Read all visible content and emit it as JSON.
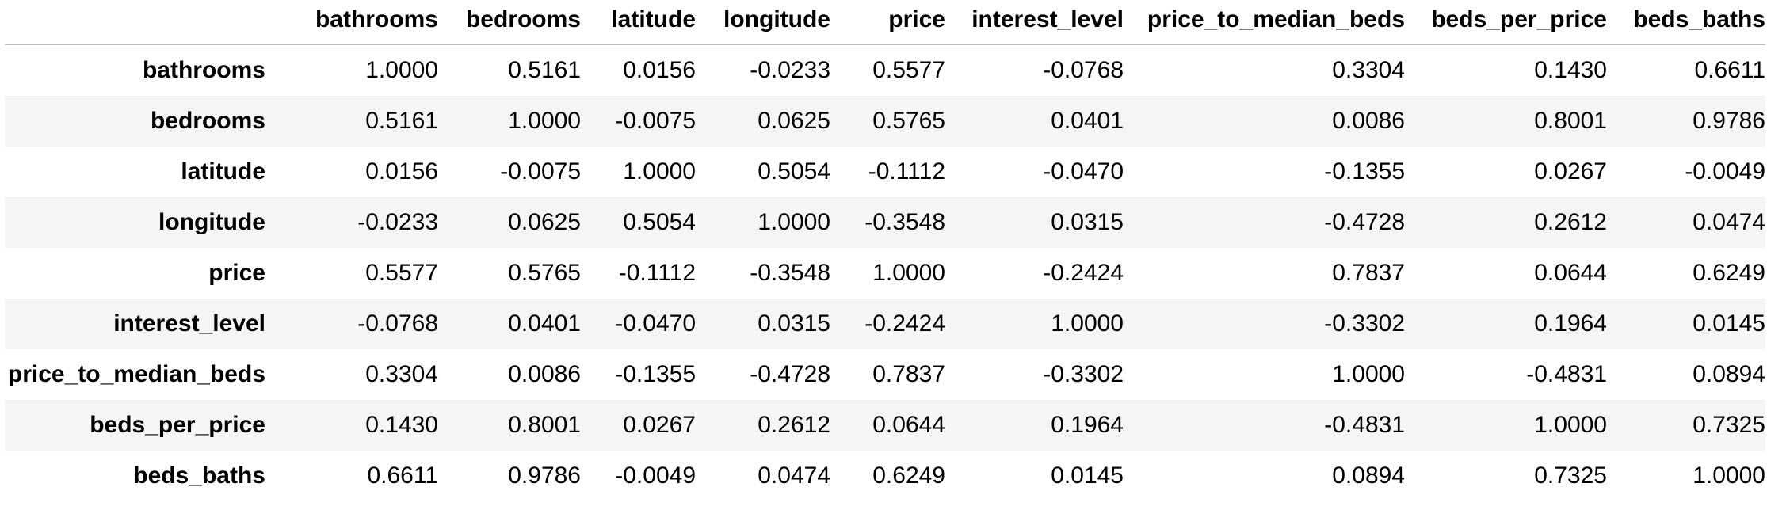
{
  "table": {
    "columns": [
      "bathrooms",
      "bedrooms",
      "latitude",
      "longitude",
      "price",
      "interest_level",
      "price_to_median_beds",
      "beds_per_price",
      "beds_baths"
    ],
    "rows": [
      {
        "label": "bathrooms",
        "values": [
          "1.0000",
          "0.5161",
          "0.0156",
          "-0.0233",
          "0.5577",
          "-0.0768",
          "0.3304",
          "0.1430",
          "0.6611"
        ]
      },
      {
        "label": "bedrooms",
        "values": [
          "0.5161",
          "1.0000",
          "-0.0075",
          "0.0625",
          "0.5765",
          "0.0401",
          "0.0086",
          "0.8001",
          "0.9786"
        ]
      },
      {
        "label": "latitude",
        "values": [
          "0.0156",
          "-0.0075",
          "1.0000",
          "0.5054",
          "-0.1112",
          "-0.0470",
          "-0.1355",
          "0.0267",
          "-0.0049"
        ]
      },
      {
        "label": "longitude",
        "values": [
          "-0.0233",
          "0.0625",
          "0.5054",
          "1.0000",
          "-0.3548",
          "0.0315",
          "-0.4728",
          "0.2612",
          "0.0474"
        ]
      },
      {
        "label": "price",
        "values": [
          "0.5577",
          "0.5765",
          "-0.1112",
          "-0.3548",
          "1.0000",
          "-0.2424",
          "0.7837",
          "0.0644",
          "0.6249"
        ]
      },
      {
        "label": "interest_level",
        "values": [
          "-0.0768",
          "0.0401",
          "-0.0470",
          "0.0315",
          "-0.2424",
          "1.0000",
          "-0.3302",
          "0.1964",
          "0.0145"
        ]
      },
      {
        "label": "price_to_median_beds",
        "values": [
          "0.3304",
          "0.0086",
          "-0.1355",
          "-0.4728",
          "0.7837",
          "-0.3302",
          "1.0000",
          "-0.4831",
          "0.0894"
        ]
      },
      {
        "label": "beds_per_price",
        "values": [
          "0.1430",
          "0.8001",
          "0.0267",
          "0.2612",
          "0.0644",
          "0.1964",
          "-0.4831",
          "1.0000",
          "0.7325"
        ]
      },
      {
        "label": "beds_baths",
        "values": [
          "0.6611",
          "0.9786",
          "-0.0049",
          "0.0474",
          "0.6249",
          "0.0145",
          "0.0894",
          "0.7325",
          "1.0000"
        ]
      }
    ]
  },
  "colors": {
    "stripe": "#f5f5f5",
    "header_rule": "#bdbdbd",
    "text": "#000000"
  }
}
